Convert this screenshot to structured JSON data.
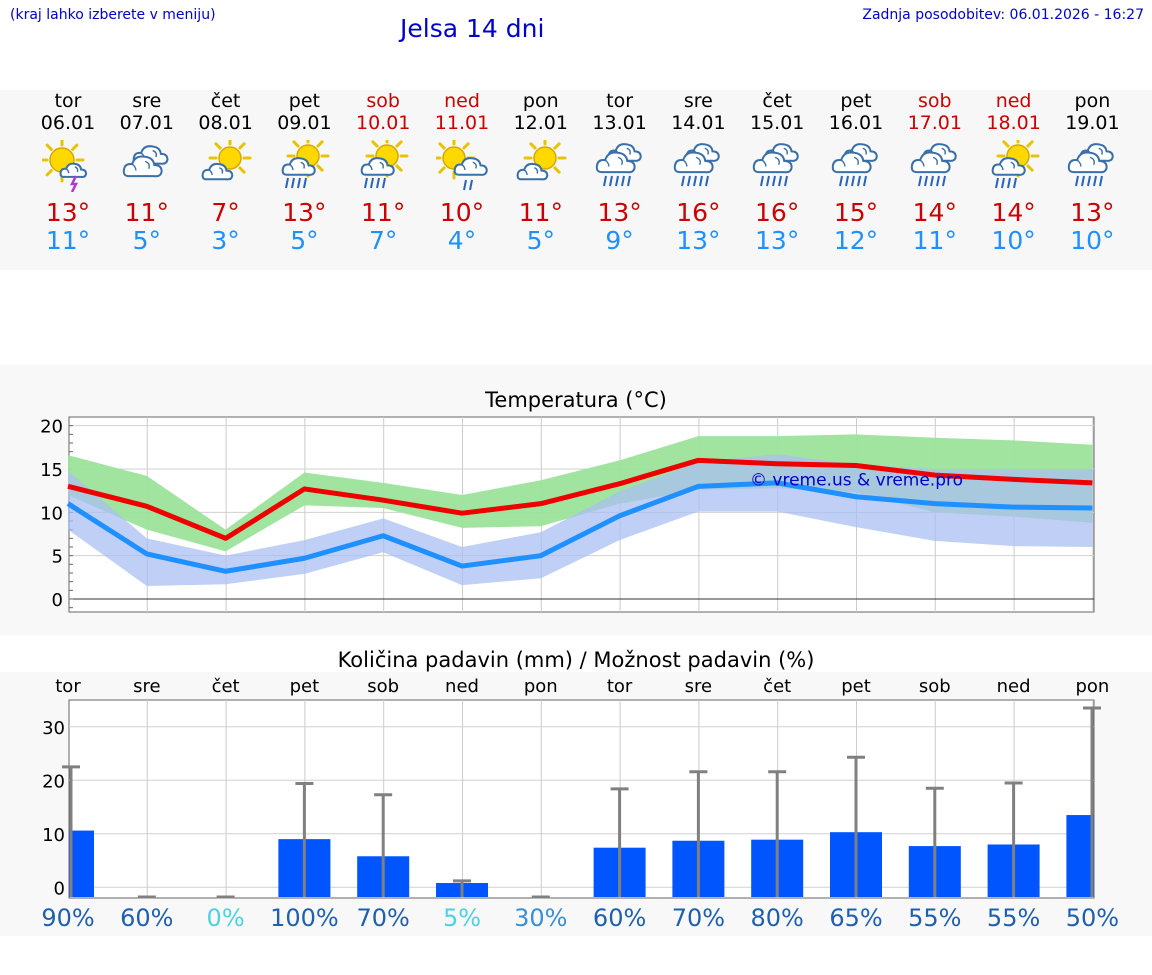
{
  "header": {
    "hint": "(kraj lahko izberete v meniju)",
    "title": "Jelsa 14 dni",
    "updated": "Zadnja posodobitev: 06.01.2026 - 16:27"
  },
  "days": [
    {
      "name": "tor",
      "date": "06.01",
      "weekend": false,
      "icon": "sun-cloud-thunder-icon",
      "max": "13°",
      "min": "11°"
    },
    {
      "name": "sre",
      "date": "07.01",
      "weekend": false,
      "icon": "cloud-icon",
      "max": "11°",
      "min": "5°"
    },
    {
      "name": "čet",
      "date": "08.01",
      "weekend": false,
      "icon": "sun-cloud-icon",
      "max": "7°",
      "min": "3°"
    },
    {
      "name": "pet",
      "date": "09.01",
      "weekend": false,
      "icon": "sun-cloud-rain-icon",
      "max": "13°",
      "min": "5°"
    },
    {
      "name": "sob",
      "date": "10.01",
      "weekend": true,
      "icon": "sun-cloud-rain-icon",
      "max": "11°",
      "min": "7°"
    },
    {
      "name": "ned",
      "date": "11.01",
      "weekend": true,
      "icon": "sun-cloud-light-rain-icon",
      "max": "10°",
      "min": "4°"
    },
    {
      "name": "pon",
      "date": "12.01",
      "weekend": false,
      "icon": "sun-cloud-icon",
      "max": "11°",
      "min": "5°"
    },
    {
      "name": "tor",
      "date": "13.01",
      "weekend": false,
      "icon": "cloud-rain-icon",
      "max": "13°",
      "min": "9°"
    },
    {
      "name": "sre",
      "date": "14.01",
      "weekend": false,
      "icon": "cloud-rain-icon",
      "max": "16°",
      "min": "13°"
    },
    {
      "name": "čet",
      "date": "15.01",
      "weekend": false,
      "icon": "cloud-rain-icon",
      "max": "16°",
      "min": "13°"
    },
    {
      "name": "pet",
      "date": "16.01",
      "weekend": false,
      "icon": "cloud-rain-icon",
      "max": "15°",
      "min": "12°"
    },
    {
      "name": "sob",
      "date": "17.01",
      "weekend": true,
      "icon": "cloud-rain-icon",
      "max": "14°",
      "min": "11°"
    },
    {
      "name": "ned",
      "date": "18.01",
      "weekend": true,
      "icon": "sun-cloud-rain-icon",
      "max": "14°",
      "min": "10°"
    },
    {
      "name": "pon",
      "date": "19.01",
      "weekend": false,
      "icon": "cloud-rain-icon",
      "max": "13°",
      "min": "10°"
    }
  ],
  "colors": {
    "max": "#ee0000",
    "min": "#1e90ff",
    "maxBand": "#9be39b",
    "minBand": "#a9bff2",
    "overlap": "#7cbfa5",
    "bar": "#0055ff",
    "whisker": "#808080"
  },
  "chart_data": [
    {
      "type": "line",
      "title": "Temperatura (°C)",
      "watermark": "© vreme.us & vreme.pro",
      "ylim": [
        -1.5,
        21
      ],
      "yticks": [
        0,
        5,
        10,
        15,
        20
      ],
      "x": [
        0,
        1,
        2,
        3,
        4,
        5,
        6,
        7,
        8,
        9,
        10,
        11,
        12,
        13
      ],
      "series": [
        {
          "name": "max",
          "values": [
            13,
            10.7,
            7,
            12.7,
            11.4,
            9.9,
            11,
            13.3,
            16,
            15.6,
            15.4,
            14.3,
            13.8,
            13.4
          ]
        },
        {
          "name": "min",
          "values": [
            11,
            5.2,
            3.2,
            4.7,
            7.3,
            3.8,
            5,
            9.6,
            13,
            13.4,
            11.8,
            11,
            10.6,
            10.5
          ]
        }
      ],
      "bands": [
        {
          "name": "max-range",
          "lower": [
            12,
            8,
            5.5,
            10.8,
            10.5,
            8.2,
            8.4,
            11,
            12.6,
            12.8,
            12.3,
            10,
            9.5,
            8.8
          ],
          "upper": [
            16.6,
            14.2,
            8,
            14.6,
            13.4,
            12,
            13.7,
            16,
            18.8,
            18.8,
            19,
            18.6,
            18.3,
            17.8
          ]
        },
        {
          "name": "min-range",
          "lower": [
            8,
            1.5,
            1.7,
            2.9,
            5.4,
            1.6,
            2.4,
            6.8,
            10.1,
            10.1,
            8.3,
            6.7,
            6.1,
            6
          ]
        },
        {
          "name": "min-range-upper",
          "values": [
            14.8,
            7,
            5,
            6.8,
            9.3,
            6,
            7.7,
            12.4,
            15.8,
            16.7,
            15.5,
            15,
            15,
            15
          ]
        }
      ]
    },
    {
      "type": "bar",
      "title": "Količina padavin (mm) / Možnost padavin (%)",
      "categories": [
        "tor",
        "sre",
        "čet",
        "pet",
        "sob",
        "ned",
        "pon",
        "tor",
        "sre",
        "čet",
        "pet",
        "sob",
        "ned",
        "pon"
      ],
      "values": [
        10.6,
        0,
        0,
        9,
        5.8,
        0.8,
        0,
        7.4,
        8.7,
        8.9,
        10.3,
        7.7,
        8,
        13.5
      ],
      "max": [
        22.5,
        0,
        0,
        19.4,
        17.3,
        1.2,
        0,
        18.4,
        21.6,
        21.6,
        24.3,
        18.5,
        19.5,
        33.5
      ],
      "ylim": [
        -2,
        35
      ],
      "yticks": [
        0,
        10,
        20,
        30
      ],
      "probability": [
        "90%",
        "60%",
        "0%",
        "100%",
        "70%",
        "5%",
        "30%",
        "60%",
        "70%",
        "80%",
        "65%",
        "55%",
        "55%",
        "50%"
      ],
      "probability_values": [
        90,
        60,
        0,
        100,
        70,
        5,
        30,
        60,
        70,
        80,
        65,
        55,
        55,
        50
      ]
    }
  ]
}
